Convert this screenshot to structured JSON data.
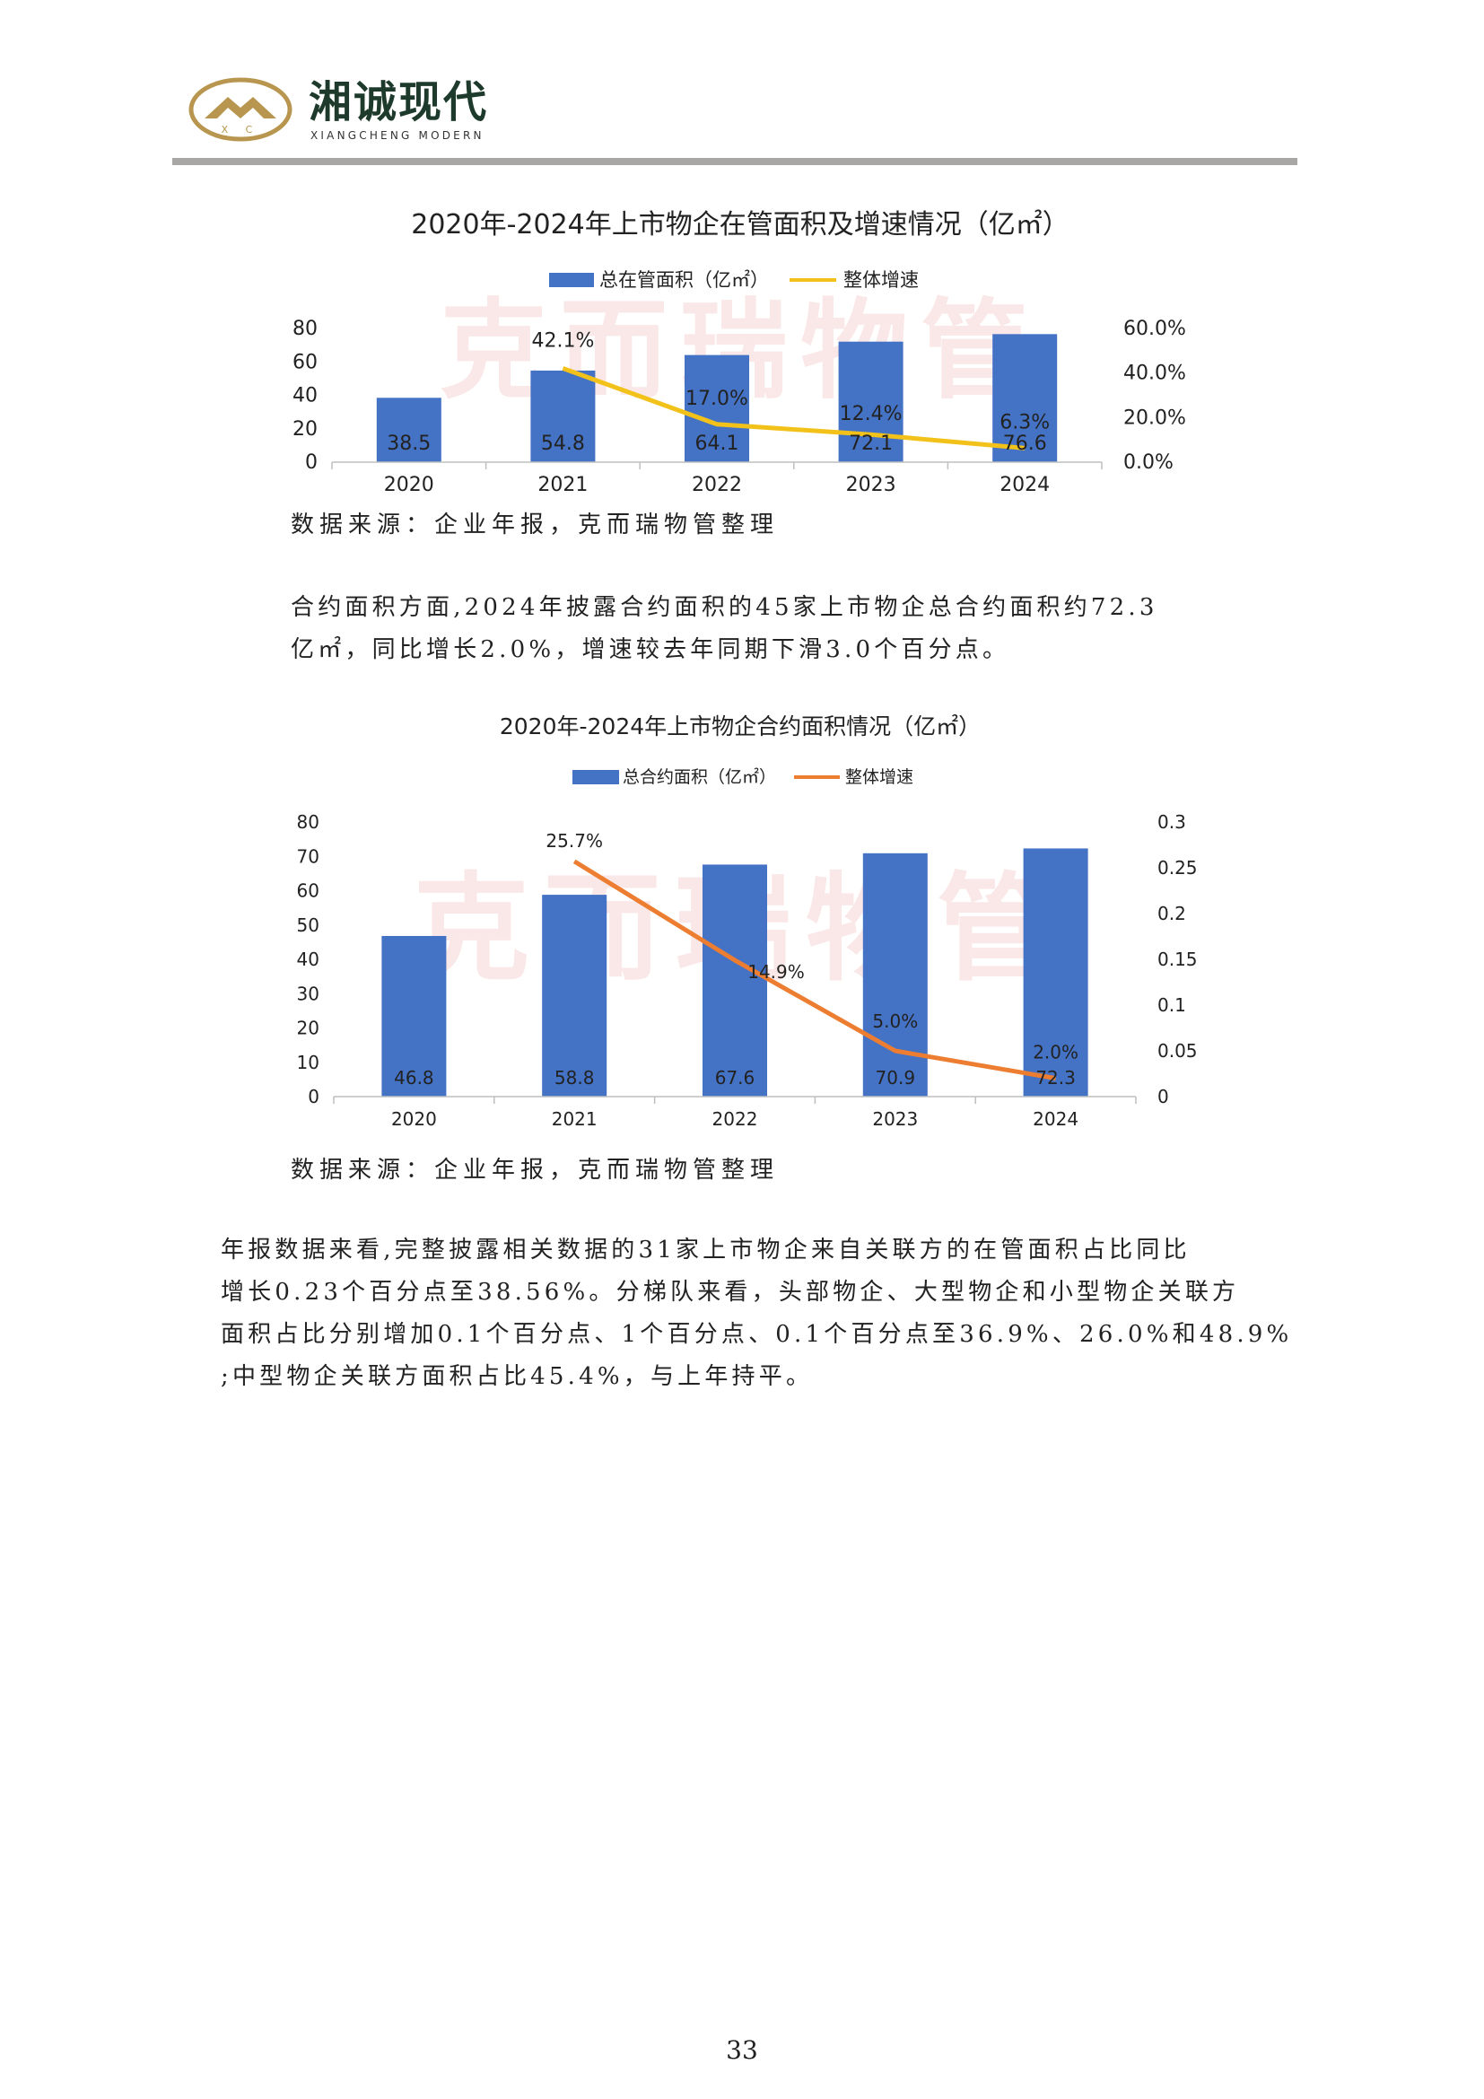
{
  "header": {
    "logo_name": "湘诚现代",
    "logo_subtitle": "XIANGCHENG MODERN",
    "logo_mark_letters": "X C"
  },
  "charts": {
    "watermark": "克而瑞物管",
    "chart1": {
      "title": "2020年-2024年上市物企在管面积及增速情况（亿㎡）",
      "legend_bar": "总在管面积（亿㎡）",
      "legend_line": "整体增速",
      "bar_color": "#4472c4",
      "line_color": "#f2c21b"
    },
    "chart2": {
      "title": "2020年-2024年上市物企合约面积情况（亿㎡）",
      "legend_bar": "总合约面积（亿㎡）",
      "legend_line": "整体增速",
      "bar_color": "#4472c4",
      "line_color": "#ed7d31"
    }
  },
  "chart_data": [
    {
      "type": "bar",
      "title": "2020年-2024年上市物企在管面积及增速情况（亿㎡）",
      "categories": [
        "2020",
        "2021",
        "2022",
        "2023",
        "2024"
      ],
      "series": [
        {
          "name": "总在管面积（亿㎡）",
          "type": "bar",
          "axis": "left",
          "values": [
            38.5,
            54.8,
            64.1,
            72.1,
            76.6
          ],
          "labels": [
            "38.5",
            "54.8",
            "64.1",
            "72.1",
            "76.6"
          ]
        },
        {
          "name": "整体增速",
          "type": "line",
          "axis": "right",
          "values": [
            null,
            42.1,
            17.0,
            12.4,
            6.3
          ],
          "labels": [
            "",
            "42.1%",
            "17.0%",
            "12.4%",
            "6.3%"
          ]
        }
      ],
      "ylim_left": [
        0,
        80
      ],
      "yticks_left": [
        "0",
        "20",
        "40",
        "60",
        "80"
      ],
      "ylim_right": [
        0,
        60
      ],
      "yticks_right": [
        "0.0%",
        "20.0%",
        "40.0%",
        "60.0%"
      ],
      "legend": "top"
    },
    {
      "type": "bar",
      "title": "2020年-2024年上市物企合约面积情况（亿㎡）",
      "categories": [
        "2020",
        "2021",
        "2022",
        "2023",
        "2024"
      ],
      "series": [
        {
          "name": "总合约面积（亿㎡）",
          "type": "bar",
          "axis": "left",
          "values": [
            46.8,
            58.8,
            67.6,
            70.9,
            72.3
          ],
          "labels": [
            "46.8",
            "58.8",
            "67.6",
            "70.9",
            "72.3"
          ]
        },
        {
          "name": "整体增速",
          "type": "line",
          "axis": "right",
          "values": [
            null,
            0.257,
            0.149,
            0.05,
            0.02
          ],
          "labels": [
            "",
            "25.7%",
            "14.9%",
            "5.0%",
            "2.0%"
          ]
        }
      ],
      "ylim_left": [
        0,
        80
      ],
      "yticks_left": [
        "0",
        "10",
        "20",
        "30",
        "40",
        "50",
        "60",
        "70",
        "80"
      ],
      "ylim_right": [
        0,
        0.3
      ],
      "yticks_right": [
        "0",
        "0.05",
        "0.1",
        "0.15",
        "0.2",
        "0.25",
        "0.3"
      ],
      "legend": "top"
    }
  ],
  "source1": "数据来源：企业年报，克而瑞物管整理",
  "source2": "数据来源：企业年报，克而瑞物管整理",
  "para1": {
    "line1": "合约面积方面,2024年披露合约面积的45家上市物企总合约面积约72.3",
    "line2": "亿㎡，同比增长2.0%，增速较去年同期下滑3.0个百分点。"
  },
  "para2": {
    "line1": "年报数据来看,完整披露相关数据的31家上市物企来自关联方的在管面积占比同比",
    "line2": "增长0.23个百分点至38.56%。分梯队来看，头部物企、大型物企和小型物企关联方",
    "line3": "面积占比分别增加0.1个百分点、1个百分点、0.1个百分点至36.9%、26.0%和48.9%",
    "line4": ";中型物企关联方面积占比45.4%，与上年持平。"
  },
  "page_number": "33"
}
